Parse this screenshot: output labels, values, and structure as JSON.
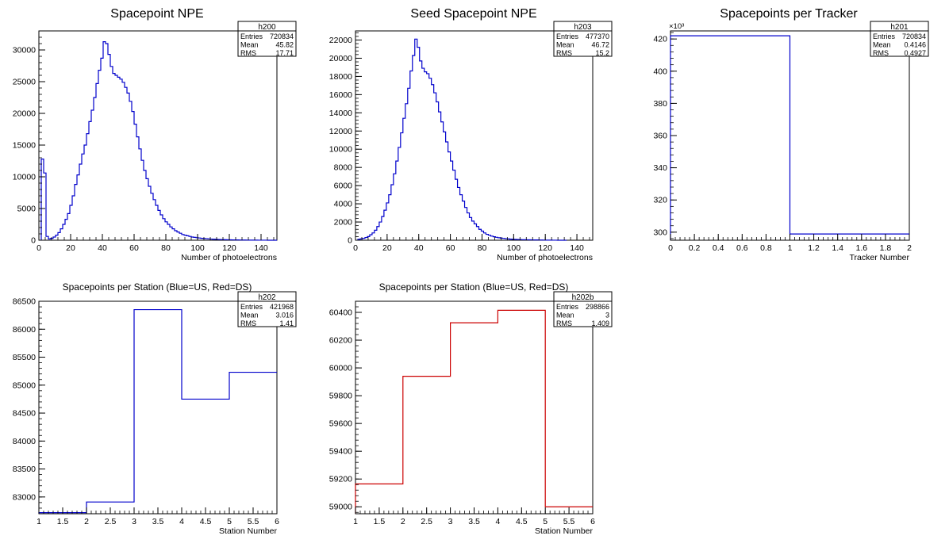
{
  "canvas": {
    "background": "#ffffff"
  },
  "chart_data": [
    {
      "type": "bar",
      "hist_name": "h200",
      "title": "Spacepoint NPE",
      "xlabel": "Number of photoelectrons",
      "ylabel": "",
      "xlim": [
        0,
        150
      ],
      "ylim": [
        0,
        33000
      ],
      "xticks": [
        0,
        20,
        40,
        60,
        80,
        100,
        120,
        140
      ],
      "yticks": [
        0,
        5000,
        10000,
        15000,
        20000,
        25000,
        30000
      ],
      "line_color": "#0000cc",
      "bin_width": 1.5,
      "bin_start": 1.5,
      "values": [
        12800,
        10600,
        600,
        200,
        300,
        500,
        800,
        1200,
        1800,
        2500,
        3300,
        4200,
        5500,
        7000,
        8800,
        10300,
        12000,
        13600,
        15000,
        16800,
        18700,
        20500,
        22500,
        24700,
        26800,
        28700,
        31300,
        31000,
        29300,
        27400,
        26300,
        26000,
        25700,
        25400,
        24900,
        24100,
        23200,
        21900,
        20300,
        18300,
        16300,
        14400,
        12600,
        11000,
        9700,
        8500,
        7400,
        6400,
        5500,
        4700,
        4000,
        3400,
        2900,
        2500,
        2100,
        1800,
        1500,
        1300,
        1100,
        900,
        800,
        700,
        600,
        500,
        450,
        400,
        350,
        300,
        270,
        240,
        210,
        180,
        160,
        140,
        120,
        100,
        90,
        80,
        70,
        60,
        55,
        50,
        45,
        40,
        35,
        30,
        25,
        20,
        18,
        15,
        12,
        10,
        8,
        6,
        5,
        4,
        3,
        2,
        1
      ],
      "stats": {
        "entries": "720834",
        "mean": "45.82",
        "rms": "17.71"
      }
    },
    {
      "type": "bar",
      "hist_name": "h203",
      "title": "Seed Spacepoint NPE",
      "xlabel": "Number of photoelectrons",
      "ylabel": "",
      "xlim": [
        0,
        150
      ],
      "ylim": [
        0,
        23000
      ],
      "xticks": [
        0,
        20,
        40,
        60,
        80,
        100,
        120,
        140
      ],
      "yticks": [
        0,
        2000,
        4000,
        6000,
        8000,
        10000,
        12000,
        14000,
        16000,
        18000,
        20000,
        22000
      ],
      "line_color": "#0000cc",
      "bin_width": 1.5,
      "bin_start": 1.5,
      "values": [
        100,
        150,
        200,
        300,
        400,
        600,
        800,
        1100,
        1500,
        2000,
        2600,
        3300,
        4100,
        5000,
        6100,
        7300,
        8700,
        10200,
        11800,
        13400,
        15000,
        16700,
        18600,
        20300,
        22100,
        21200,
        19700,
        18900,
        18500,
        18300,
        17800,
        17100,
        16200,
        15200,
        14100,
        13000,
        11900,
        10800,
        9700,
        8700,
        7700,
        6700,
        5800,
        5000,
        4300,
        3600,
        3000,
        2500,
        2100,
        1800,
        1500,
        1200,
        1000,
        800,
        650,
        550,
        450,
        380,
        320,
        270,
        230,
        200,
        170,
        140,
        120,
        100,
        90,
        80,
        70,
        60,
        55,
        50,
        45,
        40,
        35,
        30,
        25,
        20,
        15,
        12,
        10,
        8,
        6,
        4,
        3,
        2,
        1,
        1
      ],
      "stats": {
        "entries": "477370",
        "mean": "46.72",
        "rms": "15.2"
      }
    },
    {
      "type": "bar",
      "hist_name": "h201",
      "title": "Spacepoints per Tracker",
      "xlabel": "Tracker Number",
      "ylabel": "",
      "y_exponent": "×10³",
      "xlim": [
        0,
        2
      ],
      "ylim": [
        295,
        425
      ],
      "xticks": [
        0,
        0.2,
        0.4,
        0.6,
        0.8,
        1,
        1.2,
        1.4,
        1.6,
        1.8,
        2
      ],
      "yticks": [
        300,
        320,
        340,
        360,
        380,
        400,
        420
      ],
      "line_color": "#0000cc",
      "bin_width": 1,
      "bin_start": 0,
      "values": [
        421.968,
        298.866
      ],
      "stats": {
        "entries": "720834",
        "mean": "0.4146",
        "rms": "0.4927"
      }
    },
    {
      "type": "bar",
      "hist_name": "h202",
      "title": "Spacepoints per Station (Blue=US, Red=DS)",
      "xlabel": "Station Number",
      "ylabel": "",
      "xlim": [
        1,
        6
      ],
      "ylim": [
        82700,
        86500
      ],
      "xticks": [
        1,
        1.5,
        2,
        2.5,
        3,
        3.5,
        4,
        4.5,
        5,
        5.5,
        6
      ],
      "yticks": [
        83000,
        83500,
        84000,
        84500,
        85000,
        85500,
        86000,
        86500
      ],
      "line_color": "#0000cc",
      "bin_width": 1,
      "bin_start": 1,
      "values": [
        82720,
        82910,
        86350,
        84750,
        85230
      ],
      "stats": {
        "entries": "421968",
        "mean": "3.016",
        "rms": "1.41"
      }
    },
    {
      "type": "bar",
      "hist_name": "h202b",
      "title": "Spacepoints per Station (Blue=US, Red=DS)",
      "xlabel": "Station Number",
      "ylabel": "",
      "xlim": [
        1,
        6
      ],
      "ylim": [
        58950,
        60480
      ],
      "xticks": [
        1,
        1.5,
        2,
        2.5,
        3,
        3.5,
        4,
        4.5,
        5,
        5.5,
        6
      ],
      "yticks": [
        59000,
        59200,
        59400,
        59600,
        59800,
        60000,
        60200,
        60400
      ],
      "line_color": "#cc0000",
      "bin_width": 1,
      "bin_start": 1,
      "values": [
        59165,
        59940,
        60325,
        60415,
        59000
      ],
      "stats": {
        "entries": "298866",
        "mean": "3",
        "rms": "1.409"
      }
    }
  ],
  "stats_labels": {
    "entries": "Entries",
    "mean": "Mean",
    "rms": "RMS"
  }
}
